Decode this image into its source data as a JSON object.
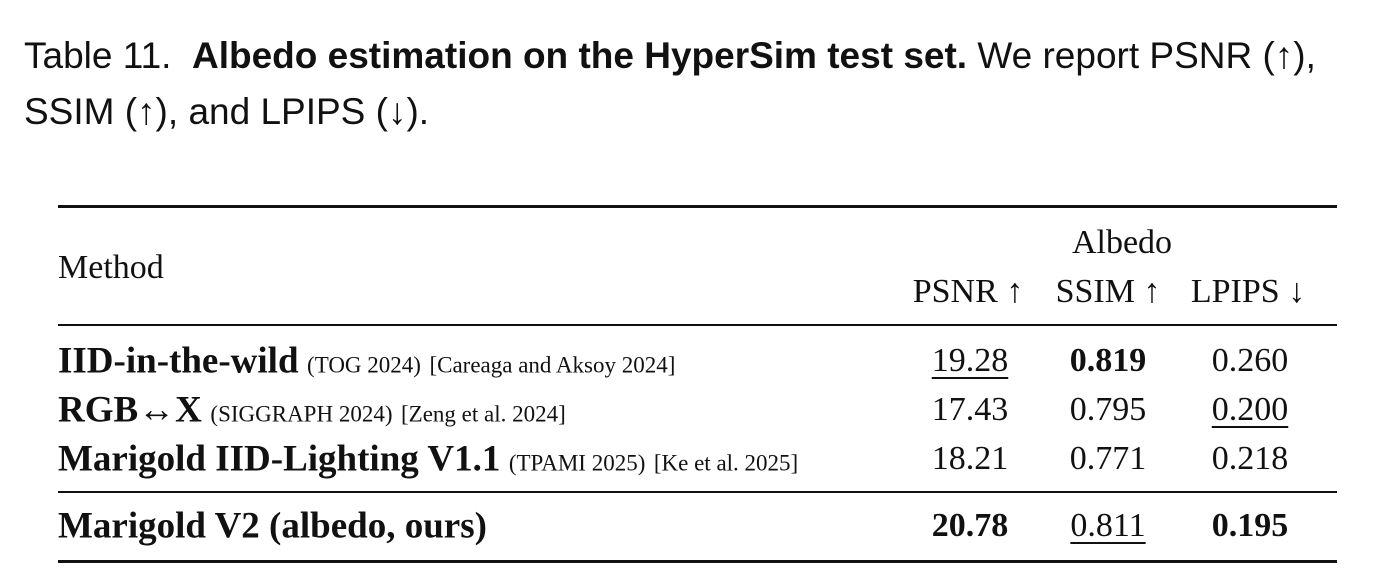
{
  "caption": {
    "label": "Table 11.",
    "title": "Albedo estimation on the HyperSim test set.",
    "text": "We report PSNR (↑), SSIM (↑), and LPIPS (↓)."
  },
  "table": {
    "header": {
      "method": "Method",
      "group": "Albedo",
      "columns": [
        "PSNR ↑",
        "SSIM ↑",
        "LPIPS ↓"
      ]
    },
    "rows": [
      {
        "method": "IID-in-the-wild",
        "venue": "(TOG 2024)",
        "citation": "[Careaga and Aksoy 2024]",
        "values": [
          "19.28",
          "0.819",
          "0.260"
        ]
      },
      {
        "method": "RGB↔X",
        "venue": "(SIGGRAPH 2024)",
        "citation": "[Zeng et al. 2024]",
        "values": [
          "17.43",
          "0.795",
          "0.200"
        ]
      },
      {
        "method": "Marigold IID-Lighting V1.1",
        "venue": "(TPAMI 2025)",
        "citation": "[Ke et al. 2025]",
        "values": [
          "18.21",
          "0.771",
          "0.218"
        ]
      }
    ],
    "ours": {
      "method": "Marigold V2 (albedo, ours)",
      "values": [
        "20.78",
        "0.811",
        "0.195"
      ]
    }
  }
}
